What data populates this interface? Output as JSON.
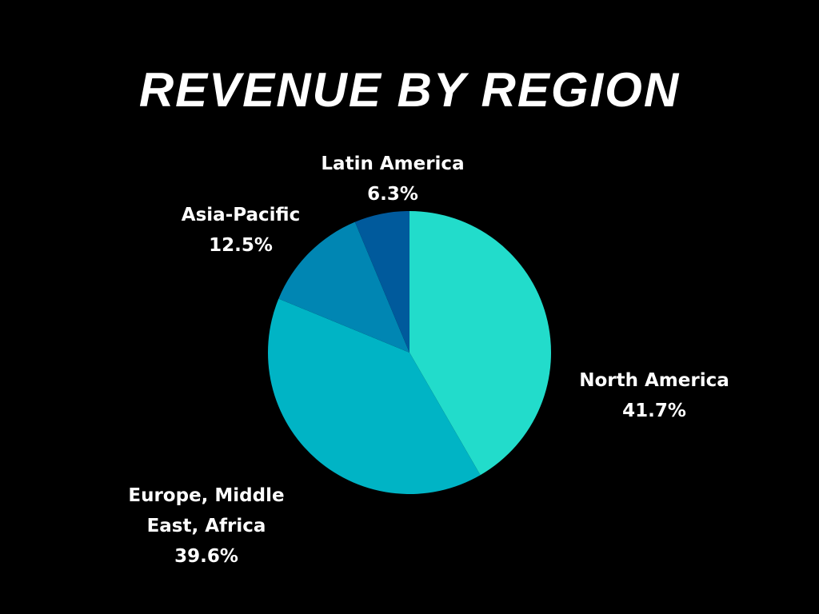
{
  "chart_data": {
    "type": "pie",
    "title": "REVENUE BY REGION",
    "categories": [
      "North America",
      "Europe, Middle East, Africa",
      "Asia-Pacific",
      "Latin America"
    ],
    "values": [
      41.7,
      39.6,
      12.5,
      6.3
    ],
    "value_labels": [
      "41.7%",
      "39.6%",
      "12.5%",
      "6.3%"
    ],
    "colors": [
      "#22dccb",
      "#00b4c5",
      "#0086b3",
      "#005a9c"
    ]
  }
}
